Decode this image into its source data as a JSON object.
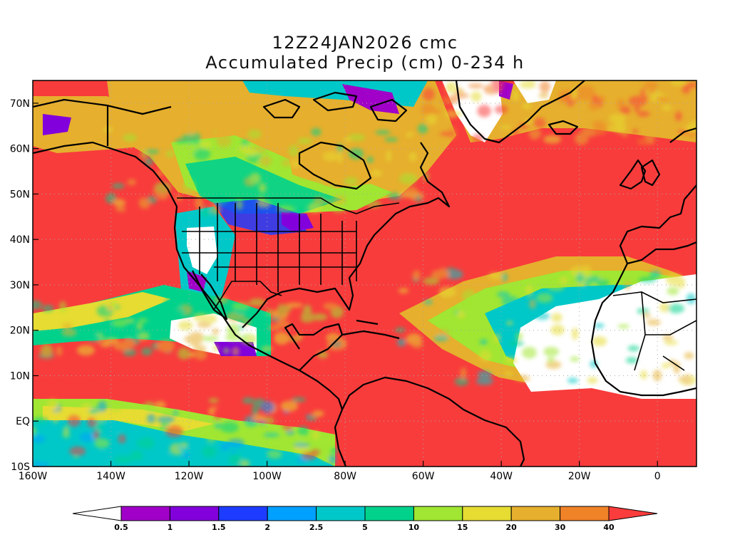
{
  "title_line1": "12Z24JAN2026 cmc",
  "title_line2": "Accumulated Precip (cm) 0-234 h",
  "map": {
    "lon_range": [
      -160,
      10
    ],
    "lat_range": [
      -10,
      75
    ],
    "x_ticks": [
      {
        "lon": -160,
        "label": "160W"
      },
      {
        "lon": -140,
        "label": "140W"
      },
      {
        "lon": -120,
        "label": "120W"
      },
      {
        "lon": -100,
        "label": "100W"
      },
      {
        "lon": -80,
        "label": "80W"
      },
      {
        "lon": -60,
        "label": "60W"
      },
      {
        "lon": -40,
        "label": "40W"
      },
      {
        "lon": -20,
        "label": "20W"
      },
      {
        "lon": 0,
        "label": "0"
      }
    ],
    "y_ticks": [
      {
        "lat": 70,
        "label": "70N"
      },
      {
        "lat": 60,
        "label": "60N"
      },
      {
        "lat": 50,
        "label": "50N"
      },
      {
        "lat": 40,
        "label": "40N"
      },
      {
        "lat": 30,
        "label": "30N"
      },
      {
        "lat": 20,
        "label": "20N"
      },
      {
        "lat": 10,
        "label": "10N"
      },
      {
        "lat": 0,
        "label": "EQ"
      },
      {
        "lat": -10,
        "label": "10S"
      }
    ],
    "grid_lines": "dotted"
  },
  "colorbar": {
    "labels": [
      "0.5",
      "1",
      "1.5",
      "2",
      "2.5",
      "5",
      "10",
      "15",
      "20",
      "30",
      "40"
    ],
    "colors": [
      "#ffffff",
      "#a000c8",
      "#8200dc",
      "#1e3cff",
      "#00a0ff",
      "#00c8c8",
      "#00d28c",
      "#a0e632",
      "#e6dc32",
      "#e6af2d",
      "#f08228",
      "#fa3c3c"
    ]
  }
}
